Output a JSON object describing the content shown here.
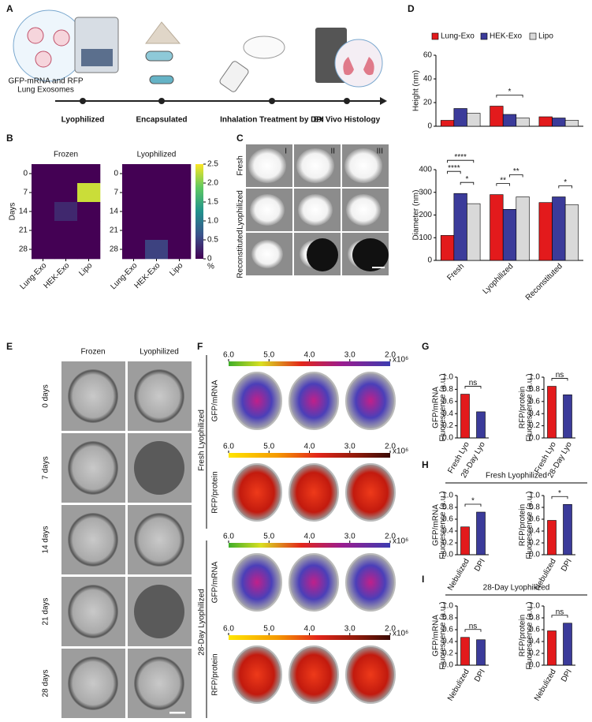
{
  "panel_labels": [
    "A",
    "B",
    "C",
    "D",
    "E",
    "F",
    "G",
    "H",
    "I"
  ],
  "schematic": {
    "caption": [
      "GFP-mRNA and RFP",
      "Lung Exosomes"
    ],
    "steps": [
      "Lyophilized",
      "Encapsulated",
      "Inhalation Treatment by DPI",
      "Ex Vivo Histology"
    ]
  },
  "images": {
    "c": {
      "columns": [
        "I",
        "II",
        "III"
      ],
      "rows": [
        "Fresh",
        "Lyophilized",
        "Reconstituted"
      ]
    },
    "e": {
      "columns": [
        "Frozen",
        "Lyophilized"
      ],
      "rows": [
        "0 days",
        "7 days",
        "14 days",
        "21 days",
        "28 days"
      ]
    },
    "f": {
      "groups": [
        "Fresh Lyophilized",
        "28-Day Lyophilized"
      ],
      "channels": [
        "GFP/mRNA",
        "RFP/protein"
      ],
      "scale": {
        "xlim": [
          6,
          2
        ],
        "ticks": [
          {
            "value": 6,
            "label": "6.0"
          },
          {
            "value": 5,
            "label": "5.0"
          },
          {
            "value": 4,
            "label": "4.0"
          },
          {
            "value": 3,
            "label": "3.0"
          },
          {
            "value": 2,
            "label": "2.0"
          }
        ],
        "unit": "x10⁶"
      }
    }
  },
  "chart_data": [
    {
      "type": "heatmap",
      "title": "Frozen",
      "ylabel": "Days",
      "categories": [
        "Lung-Exo",
        "HEK-Exo",
        "Lipo"
      ],
      "rows": [
        0,
        7,
        14,
        21,
        28
      ],
      "values": [
        [
          0,
          0,
          0
        ],
        [
          0,
          0,
          2.3
        ],
        [
          0,
          0.3,
          0
        ],
        [
          0,
          0,
          0
        ],
        [
          0,
          0,
          0
        ]
      ],
      "clim": [
        0,
        2.5
      ]
    },
    {
      "type": "heatmap",
      "title": "Lyophilized",
      "categories": [
        "Lung-Exo",
        "HEK-Exo",
        "Lipo"
      ],
      "rows": [
        0,
        7,
        14,
        21,
        28
      ],
      "values": [
        [
          0,
          0,
          0
        ],
        [
          0,
          0,
          0
        ],
        [
          0,
          0,
          0
        ],
        [
          0,
          0,
          0
        ],
        [
          0,
          0.5,
          0
        ]
      ],
      "clim": [
        0,
        2.5
      ],
      "cticks": [
        0,
        0.5,
        {
          "value": 1,
          "label": "1.0"
        },
        1.5,
        {
          "value": 2,
          "label": "2.0"
        },
        2.5
      ],
      "clabel": "%"
    },
    {
      "type": "bar",
      "ylabel": "Height (nm)",
      "categories": [
        null,
        null,
        null
      ],
      "legend": true,
      "series": [
        {
          "name": "Lung-Exo",
          "color": "#e31a1c",
          "values": [
            5,
            17,
            8
          ]
        },
        {
          "name": "HEK-Exo",
          "color": "#3b3b9a",
          "values": [
            15,
            10,
            7
          ]
        },
        {
          "name": "Lipo",
          "color": "#d9d9d9",
          "values": [
            11,
            7,
            5
          ]
        }
      ],
      "ylim": [
        0,
        60
      ],
      "yticks": [
        0,
        20,
        40,
        60
      ],
      "annotations": [
        {
          "text": "*",
          "category": 1,
          "series": [
            0,
            2
          ]
        }
      ]
    },
    {
      "type": "bar",
      "ylabel": "Diameter (nm)",
      "categories": [
        "Fresh",
        "Lyophilized",
        "Reconstituted"
      ],
      "series": [
        {
          "color": "#e31a1c",
          "values": [
            110,
            290,
            255
          ]
        },
        {
          "color": "#3b3b9a",
          "values": [
            295,
            225,
            280
          ]
        },
        {
          "color": "#d9d9d9",
          "values": [
            250,
            280,
            245
          ]
        }
      ],
      "ylim": [
        0,
        400
      ],
      "yticks": [
        0,
        100,
        200,
        300,
        400
      ],
      "annotations": [
        {
          "text": "*",
          "category": 0,
          "series": [
            1,
            2
          ]
        },
        {
          "text": "****",
          "category": 0,
          "series": [
            0,
            1
          ]
        },
        {
          "text": "****",
          "category": 0,
          "series": [
            0,
            2
          ]
        },
        {
          "text": "**",
          "category": 1,
          "series": [
            0,
            1
          ]
        },
        {
          "text": "**",
          "category": 1,
          "series": [
            1,
            2
          ]
        },
        {
          "text": "*",
          "category": 2,
          "series": [
            1,
            2
          ]
        }
      ]
    },
    {
      "type": "bar",
      "ylabel": [
        "GFP/mRNA",
        "Fluorescence (a.u.)"
      ],
      "categories": [
        "Fresh Lyo",
        "28-Day Lyo"
      ],
      "values": [
        0.72,
        0.43
      ],
      "colors": [
        "#e31a1c",
        "#3b3b9a"
      ],
      "ylim": [
        0,
        1
      ],
      "yticks": [
        {
          "value": 0,
          "label": "0.0"
        },
        {
          "value": 0.2,
          "label": "0.2"
        },
        {
          "value": 0.4,
          "label": "0.4"
        },
        {
          "value": 0.6,
          "label": "0.6"
        },
        {
          "value": 0.8,
          "label": "0.8"
        },
        {
          "value": 1,
          "label": "1.0"
        }
      ],
      "annotations": [
        {
          "text": "ns",
          "bars": [
            0,
            1
          ]
        }
      ]
    },
    {
      "type": "bar",
      "ylabel": [
        "RFP/protein",
        "Fluorescence (a.u.)"
      ],
      "categories": [
        "Fresh Lyo",
        "28-Day Lyo"
      ],
      "values": [
        0.85,
        0.71
      ],
      "colors": [
        "#e31a1c",
        "#3b3b9a"
      ],
      "ylim": [
        0,
        1
      ],
      "yticks": [
        {
          "value": 0,
          "label": "0.0"
        },
        {
          "value": 0.2,
          "label": "0.2"
        },
        {
          "value": 0.4,
          "label": "0.4"
        },
        {
          "value": 0.6,
          "label": "0.6"
        },
        {
          "value": 0.8,
          "label": "0.8"
        },
        {
          "value": 1,
          "label": "1.0"
        }
      ],
      "annotations": [
        {
          "text": "ns",
          "bars": [
            0,
            1
          ]
        }
      ]
    },
    {
      "type": "bar",
      "title": "Fresh Lyophilized",
      "ylabel": [
        "GFP/mRNA",
        "Fluorescence (a.u.)"
      ],
      "categories": [
        "Nebulized",
        "DPI"
      ],
      "values": [
        0.47,
        0.72
      ],
      "colors": [
        "#e31a1c",
        "#3b3b9a"
      ],
      "ylim": [
        0,
        1
      ],
      "yticks": [
        {
          "value": 0,
          "label": "0.0"
        },
        {
          "value": 0.2,
          "label": "0.2"
        },
        {
          "value": 0.4,
          "label": "0.4"
        },
        {
          "value": 0.6,
          "label": "0.6"
        },
        {
          "value": 0.8,
          "label": "0.8"
        },
        {
          "value": 1,
          "label": "1.0"
        }
      ],
      "annotations": [
        {
          "text": "*",
          "bars": [
            0,
            1
          ]
        }
      ]
    },
    {
      "type": "bar",
      "ylabel": [
        "RFP/protein",
        "Fluorescence (a.u.)"
      ],
      "categories": [
        "Nebulized",
        "DPI"
      ],
      "values": [
        0.58,
        0.85
      ],
      "colors": [
        "#e31a1c",
        "#3b3b9a"
      ],
      "ylim": [
        0,
        1
      ],
      "yticks": [
        {
          "value": 0,
          "label": "0.0"
        },
        {
          "value": 0.2,
          "label": "0.2"
        },
        {
          "value": 0.4,
          "label": "0.4"
        },
        {
          "value": 0.6,
          "label": "0.6"
        },
        {
          "value": 0.8,
          "label": "0.8"
        },
        {
          "value": 1,
          "label": "1.0"
        }
      ],
      "annotations": [
        {
          "text": "*",
          "bars": [
            0,
            1
          ]
        }
      ]
    },
    {
      "type": "bar",
      "title": "28-Day Lyophilized",
      "ylabel": [
        "GFP/mRNA",
        "Fluorescence (a.u.)"
      ],
      "categories": [
        "Nebulized",
        "DPI"
      ],
      "values": [
        0.47,
        0.43
      ],
      "colors": [
        "#e31a1c",
        "#3b3b9a"
      ],
      "ylim": [
        0,
        1
      ],
      "yticks": [
        {
          "value": 0,
          "label": "0.0"
        },
        {
          "value": 0.2,
          "label": "0.2"
        },
        {
          "value": 0.4,
          "label": "0.4"
        },
        {
          "value": 0.6,
          "label": "0.6"
        },
        {
          "value": 0.8,
          "label": "0.8"
        },
        {
          "value": 1,
          "label": "1.0"
        }
      ],
      "annotations": [
        {
          "text": "ns",
          "bars": [
            0,
            1
          ]
        }
      ]
    },
    {
      "type": "bar",
      "ylabel": [
        "RFP/protein",
        "Fluorescence (a.u.)"
      ],
      "categories": [
        "Nebulized",
        "DPI"
      ],
      "values": [
        0.58,
        0.71
      ],
      "colors": [
        "#e31a1c",
        "#3b3b9a"
      ],
      "ylim": [
        0,
        1
      ],
      "yticks": [
        {
          "value": 0,
          "label": "0.0"
        },
        {
          "value": 0.2,
          "label": "0.2"
        },
        {
          "value": 0.4,
          "label": "0.4"
        },
        {
          "value": 0.6,
          "label": "0.6"
        },
        {
          "value": 0.8,
          "label": "0.8"
        },
        {
          "value": 1,
          "label": "1.0"
        }
      ],
      "annotations": [
        {
          "text": "ns",
          "bars": [
            0,
            1
          ]
        }
      ]
    }
  ]
}
